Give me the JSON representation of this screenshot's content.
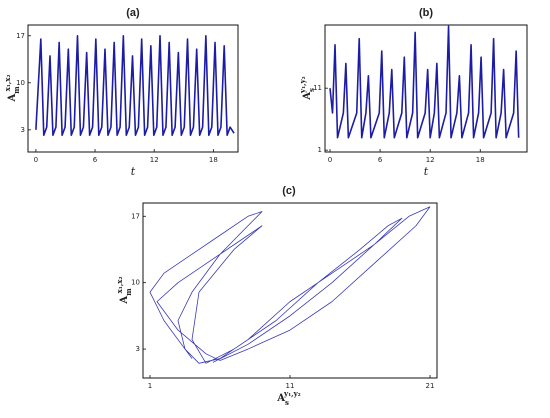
{
  "chart_data": [
    {
      "type": "line",
      "title": "(a)",
      "xlabel": "t",
      "ylabel": {
        "base": "A",
        "sub": "m",
        "sup": "x₁,x₂"
      },
      "xlim": [
        -0.8,
        20.5
      ],
      "ylim": [
        -0.3,
        18.6
      ],
      "xticks": [
        0,
        6,
        12,
        18
      ],
      "yticks": [
        3,
        10,
        17
      ],
      "color": "#1c1ca6",
      "x": [
        0,
        0.5,
        0.8,
        1.1,
        1.43,
        1.73,
        2.03,
        2.36,
        2.66,
        2.96,
        3.29,
        3.59,
        3.89,
        4.22,
        4.52,
        4.82,
        5.15,
        5.45,
        5.75,
        6.08,
        6.38,
        6.68,
        7.01,
        7.31,
        7.61,
        7.94,
        8.24,
        8.54,
        8.87,
        9.17,
        9.47,
        9.8,
        10.1,
        10.4,
        10.73,
        11.03,
        11.33,
        11.66,
        11.96,
        12.26,
        12.59,
        12.89,
        13.19,
        13.52,
        13.82,
        14.12,
        14.45,
        14.75,
        15.05,
        15.38,
        15.68,
        15.98,
        16.31,
        16.61,
        16.91,
        17.24,
        17.54,
        17.84,
        18.17,
        18.47,
        18.77,
        19.1,
        19.4,
        19.7,
        20.1
      ],
      "values": [
        3,
        16.5,
        2.2,
        3.4,
        14,
        2.2,
        3.4,
        16,
        2.2,
        3.4,
        15,
        2.2,
        3.4,
        17,
        2.2,
        3.4,
        14.5,
        2.2,
        3.4,
        16.5,
        2.2,
        3.4,
        15,
        2.2,
        3.4,
        16,
        2.2,
        3.4,
        17,
        2.2,
        3.4,
        14,
        2.2,
        3.4,
        16.5,
        2.2,
        3.4,
        15.5,
        2.2,
        3.4,
        17,
        2.2,
        3.4,
        16,
        2.2,
        3.4,
        14.5,
        2.2,
        3.4,
        16.5,
        2.2,
        3.4,
        15,
        2.2,
        3.4,
        17,
        2.2,
        3.4,
        16,
        2.2,
        3.4,
        15.5,
        2.2,
        3.4,
        2.5
      ]
    },
    {
      "type": "line",
      "title": "(b)",
      "xlabel": "t",
      "ylabel": {
        "base": "A",
        "sub": "s",
        "sup": "y₁,y₂"
      },
      "xlim": [
        -0.6,
        23.6
      ],
      "ylim": [
        0.7,
        21.2
      ],
      "xticks": [
        0,
        6,
        12,
        18
      ],
      "yticks": [
        1,
        11
      ],
      "color": "#1c1ca6",
      "x": [
        0,
        0.3,
        0.6,
        0.9,
        1.6,
        1.9,
        2.2,
        3.2,
        3.5,
        3.8,
        4.3,
        4.6,
        4.9,
        5.9,
        6.2,
        6.5,
        7.1,
        7.4,
        7.7,
        8.6,
        8.9,
        9.2,
        9.9,
        10.2,
        10.5,
        11.4,
        11.7,
        12.0,
        12.5,
        12.8,
        13.1,
        13.9,
        14.2,
        14.5,
        15.2,
        15.5,
        15.8,
        16.6,
        16.9,
        17.2,
        17.8,
        18.1,
        18.4,
        19.3,
        19.6,
        19.9,
        20.5,
        20.8,
        21.1,
        22.0,
        22.3,
        22.6
      ],
      "values": [
        11,
        7,
        18,
        3,
        7,
        15,
        3,
        7,
        19,
        3,
        7,
        13,
        3,
        7,
        17,
        3,
        7,
        14,
        3,
        7,
        16,
        3,
        7,
        20,
        3,
        7,
        14,
        3,
        7,
        15,
        3,
        7,
        21,
        3,
        7,
        13,
        3,
        7,
        18,
        3,
        7,
        16,
        3,
        7,
        19,
        3,
        7,
        14,
        3,
        7,
        17,
        3
      ]
    },
    {
      "type": "line",
      "title": "(c)",
      "xlabel": {
        "base": "A",
        "sub": "s",
        "sup": "y₁,y₂"
      },
      "ylabel": {
        "base": "A",
        "sub": "m",
        "sup": "x₁,x₂"
      },
      "xlim": [
        0.5,
        21.5
      ],
      "ylim": [
        -0.05,
        18.4
      ],
      "xticks": [
        1,
        11,
        21
      ],
      "yticks": [
        3,
        10,
        17
      ],
      "color": "#3a3ab4",
      "x": [
        4,
        2,
        1,
        2,
        4,
        6,
        8,
        9,
        8,
        6,
        4,
        3,
        3.5,
        4.5,
        6,
        8,
        11,
        14,
        17,
        19.5,
        21,
        20,
        17,
        14,
        11,
        8,
        6,
        5,
        3,
        1.5,
        3,
        5,
        7.5,
        9,
        7,
        4.5,
        4,
        5,
        7,
        10,
        13,
        16,
        18,
        19,
        17,
        14,
        11,
        8,
        5.5
      ],
      "values": [
        2,
        6,
        9,
        11,
        13,
        15,
        17,
        17.5,
        16,
        13,
        9,
        6,
        3,
        1.5,
        2,
        4,
        8,
        11,
        14,
        17,
        18,
        16,
        12,
        8,
        5,
        3,
        1.8,
        2.5,
        5,
        8,
        10,
        12,
        14.5,
        16,
        13.5,
        9,
        4,
        1.5,
        3,
        6,
        10,
        13.5,
        16,
        16.8,
        14,
        10,
        6.5,
        3.5,
        1.6
      ]
    }
  ]
}
